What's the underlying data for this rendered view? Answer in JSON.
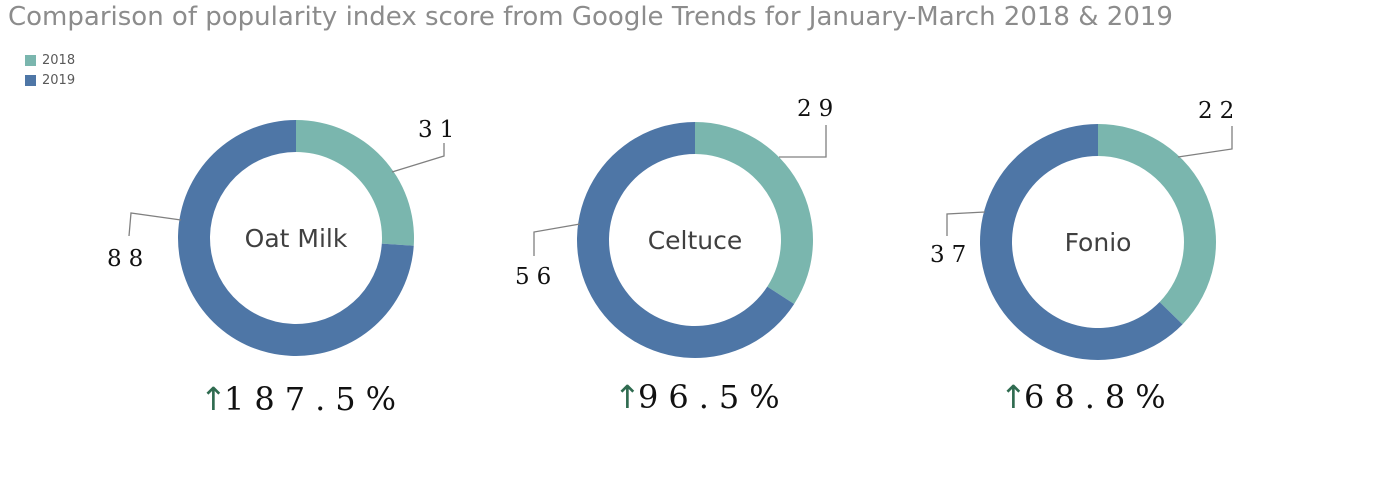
{
  "title": "Comparison of popularity index score from Google Trends for January-March 2018 & 2019",
  "colors": {
    "y2018": "#7ab6ae",
    "y2019": "#4e76a6",
    "title": "#8c8c8c",
    "arrow": "#2f6b50"
  },
  "legend": [
    {
      "label": "2018",
      "color": "#7ab6ae"
    },
    {
      "label": "2019",
      "color": "#4e76a6"
    }
  ],
  "chart_data": [
    {
      "type": "pie",
      "variant": "donut",
      "name": "Oat Milk",
      "series": [
        {
          "name": "2018",
          "value": 31
        },
        {
          "name": "2019",
          "value": 88
        }
      ],
      "change": "187.5%",
      "change_direction": "up"
    },
    {
      "type": "pie",
      "variant": "donut",
      "name": "Celtuce",
      "series": [
        {
          "name": "2018",
          "value": 29
        },
        {
          "name": "2019",
          "value": 56
        }
      ],
      "change": "96.5%",
      "change_direction": "up"
    },
    {
      "type": "pie",
      "variant": "donut",
      "name": "Fonio",
      "series": [
        {
          "name": "2018",
          "value": 22
        },
        {
          "name": "2019",
          "value": 37
        }
      ],
      "change": "68.8%",
      "change_direction": "up"
    }
  ]
}
